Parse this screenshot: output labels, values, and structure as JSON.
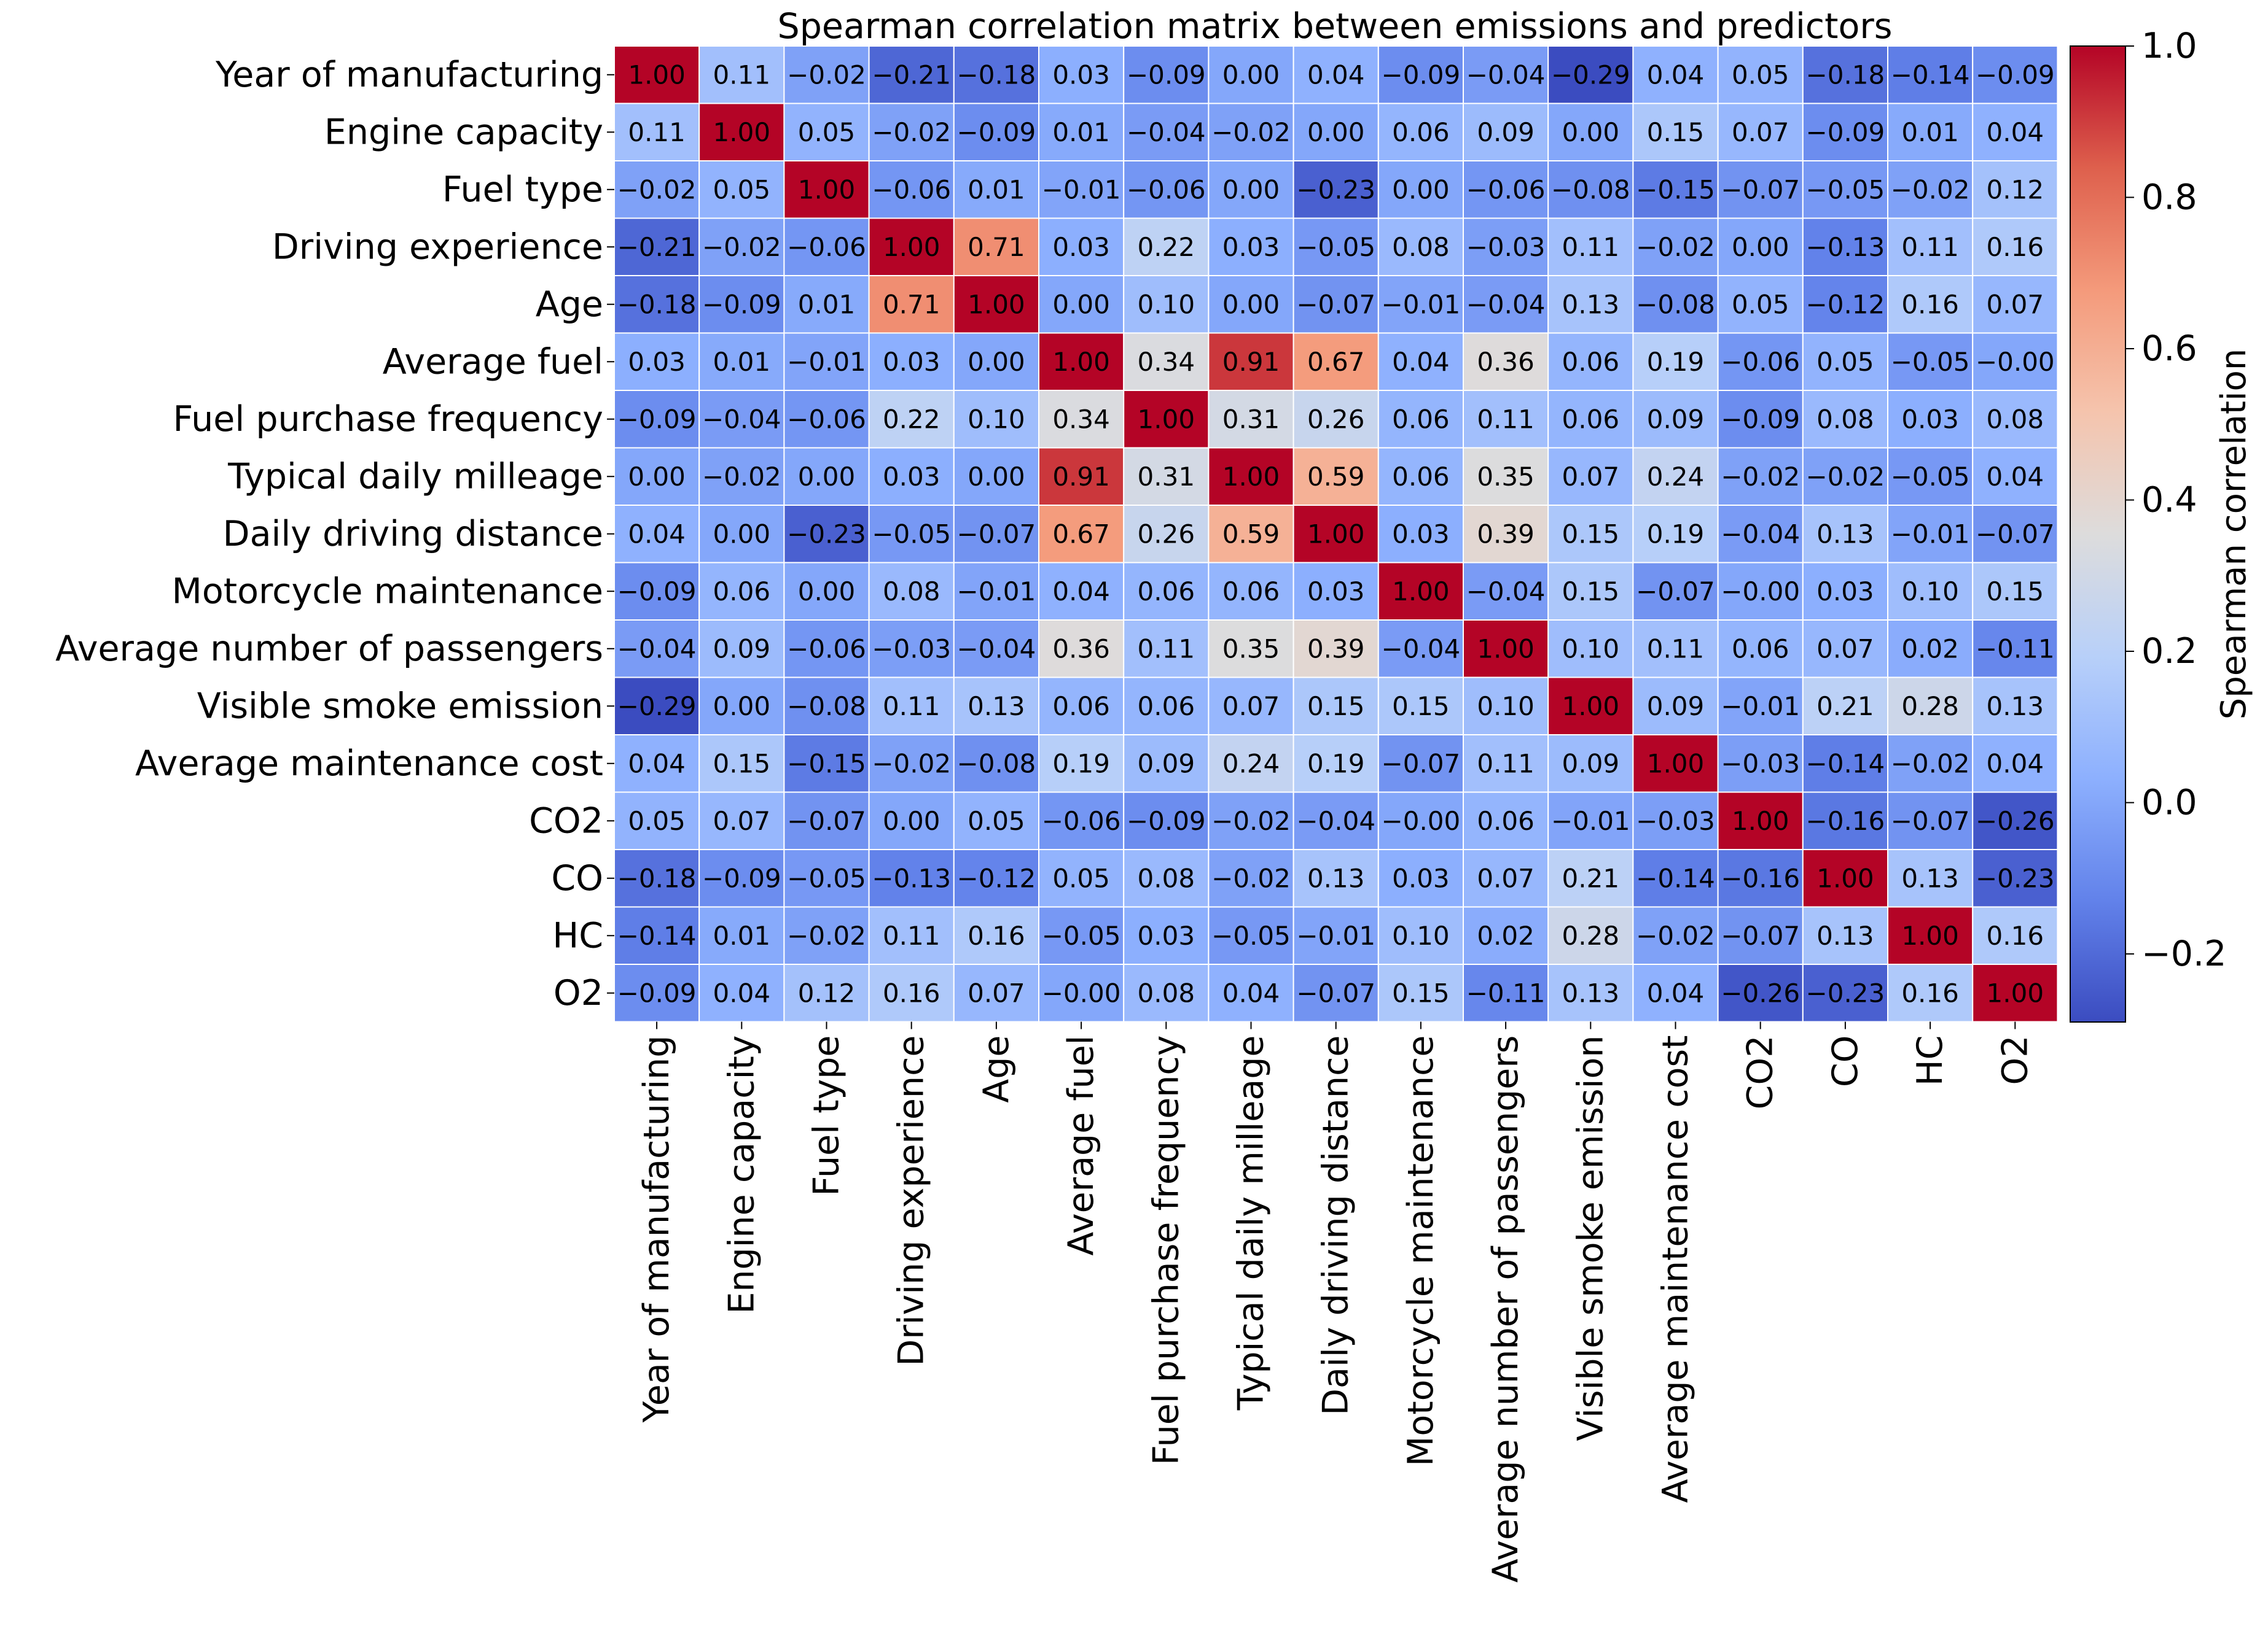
{
  "chart_data": {
    "type": "heatmap",
    "title": "Spearman correlation matrix between emissions and predictors",
    "xlabel": "",
    "ylabel": "",
    "labels": [
      "Year of manufacturing",
      "Engine capacity",
      "Fuel type",
      "Driving experience",
      "Age",
      "Average fuel",
      "Fuel purchase frequency",
      "Typical daily milleage",
      "Daily driving distance",
      "Motorcycle maintenance",
      "Average number of passengers",
      "Visible smoke emission",
      "Average maintenance cost",
      "CO2",
      "CO",
      "HC",
      "O2"
    ],
    "matrix": [
      [
        "1.00",
        "0.11",
        "−0.02",
        "−0.21",
        "−0.18",
        "0.03",
        "−0.09",
        "0.00",
        "0.04",
        "−0.09",
        "−0.04",
        "−0.29",
        "0.04",
        "0.05",
        "−0.18",
        "−0.14",
        "−0.09"
      ],
      [
        "0.11",
        "1.00",
        "0.05",
        "−0.02",
        "−0.09",
        "0.01",
        "−0.04",
        "−0.02",
        "0.00",
        "0.06",
        "0.09",
        "0.00",
        "0.15",
        "0.07",
        "−0.09",
        "0.01",
        "0.04"
      ],
      [
        "−0.02",
        "0.05",
        "1.00",
        "−0.06",
        "0.01",
        "−0.01",
        "−0.06",
        "0.00",
        "−0.23",
        "0.00",
        "−0.06",
        "−0.08",
        "−0.15",
        "−0.07",
        "−0.05",
        "−0.02",
        "0.12"
      ],
      [
        "−0.21",
        "−0.02",
        "−0.06",
        "1.00",
        "0.71",
        "0.03",
        "0.22",
        "0.03",
        "−0.05",
        "0.08",
        "−0.03",
        "0.11",
        "−0.02",
        "0.00",
        "−0.13",
        "0.11",
        "0.16"
      ],
      [
        "−0.18",
        "−0.09",
        "0.01",
        "0.71",
        "1.00",
        "0.00",
        "0.10",
        "0.00",
        "−0.07",
        "−0.01",
        "−0.04",
        "0.13",
        "−0.08",
        "0.05",
        "−0.12",
        "0.16",
        "0.07"
      ],
      [
        "0.03",
        "0.01",
        "−0.01",
        "0.03",
        "0.00",
        "1.00",
        "0.34",
        "0.91",
        "0.67",
        "0.04",
        "0.36",
        "0.06",
        "0.19",
        "−0.06",
        "0.05",
        "−0.05",
        "−0.00"
      ],
      [
        "−0.09",
        "−0.04",
        "−0.06",
        "0.22",
        "0.10",
        "0.34",
        "1.00",
        "0.31",
        "0.26",
        "0.06",
        "0.11",
        "0.06",
        "0.09",
        "−0.09",
        "0.08",
        "0.03",
        "0.08"
      ],
      [
        "0.00",
        "−0.02",
        "0.00",
        "0.03",
        "0.00",
        "0.91",
        "0.31",
        "1.00",
        "0.59",
        "0.06",
        "0.35",
        "0.07",
        "0.24",
        "−0.02",
        "−0.02",
        "−0.05",
        "0.04"
      ],
      [
        "0.04",
        "0.00",
        "−0.23",
        "−0.05",
        "−0.07",
        "0.67",
        "0.26",
        "0.59",
        "1.00",
        "0.03",
        "0.39",
        "0.15",
        "0.19",
        "−0.04",
        "0.13",
        "−0.01",
        "−0.07"
      ],
      [
        "−0.09",
        "0.06",
        "0.00",
        "0.08",
        "−0.01",
        "0.04",
        "0.06",
        "0.06",
        "0.03",
        "1.00",
        "−0.04",
        "0.15",
        "−0.07",
        "−0.00",
        "0.03",
        "0.10",
        "0.15"
      ],
      [
        "−0.04",
        "0.09",
        "−0.06",
        "−0.03",
        "−0.04",
        "0.36",
        "0.11",
        "0.35",
        "0.39",
        "−0.04",
        "1.00",
        "0.10",
        "0.11",
        "0.06",
        "0.07",
        "0.02",
        "−0.11"
      ],
      [
        "−0.29",
        "0.00",
        "−0.08",
        "0.11",
        "0.13",
        "0.06",
        "0.06",
        "0.07",
        "0.15",
        "0.15",
        "0.10",
        "1.00",
        "0.09",
        "−0.01",
        "0.21",
        "0.28",
        "0.13"
      ],
      [
        "0.04",
        "0.15",
        "−0.15",
        "−0.02",
        "−0.08",
        "0.19",
        "0.09",
        "0.24",
        "0.19",
        "−0.07",
        "0.11",
        "0.09",
        "1.00",
        "−0.03",
        "−0.14",
        "−0.02",
        "0.04"
      ],
      [
        "0.05",
        "0.07",
        "−0.07",
        "0.00",
        "0.05",
        "−0.06",
        "−0.09",
        "−0.02",
        "−0.04",
        "−0.00",
        "0.06",
        "−0.01",
        "−0.03",
        "1.00",
        "−0.16",
        "−0.07",
        "−0.26"
      ],
      [
        "−0.18",
        "−0.09",
        "−0.05",
        "−0.13",
        "−0.12",
        "0.05",
        "0.08",
        "−0.02",
        "0.13",
        "0.03",
        "0.07",
        "0.21",
        "−0.14",
        "−0.16",
        "1.00",
        "0.13",
        "−0.23"
      ],
      [
        "−0.14",
        "0.01",
        "−0.02",
        "0.11",
        "0.16",
        "−0.05",
        "0.03",
        "−0.05",
        "−0.01",
        "0.10",
        "0.02",
        "0.28",
        "−0.02",
        "−0.07",
        "0.13",
        "1.00",
        "0.16"
      ],
      [
        "−0.09",
        "0.04",
        "0.12",
        "0.16",
        "0.07",
        "−0.00",
        "0.08",
        "0.04",
        "−0.07",
        "0.15",
        "−0.11",
        "0.13",
        "0.04",
        "−0.26",
        "−0.23",
        "0.16",
        "1.00"
      ]
    ],
    "colorbar": {
      "label": "Spearman correlation",
      "ticks": [
        "−0.2",
        "0.0",
        "0.2",
        "0.4",
        "0.6",
        "0.8",
        "1.0"
      ],
      "range": [
        -0.29,
        1.0
      ],
      "colormap": "coolwarm"
    }
  }
}
